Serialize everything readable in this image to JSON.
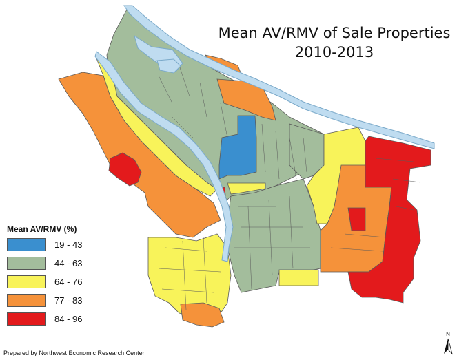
{
  "title": {
    "line1": "Mean AV/RMV of Sale Properties",
    "line2": "2010-2013"
  },
  "legend": {
    "title": "Mean AV/RMV (%)",
    "items": [
      {
        "label": "19 - 43",
        "color": "#3a8fcf"
      },
      {
        "label": "44 - 63",
        "color": "#a3bd9c"
      },
      {
        "label": "64 - 76",
        "color": "#f8f35a"
      },
      {
        "label": "77 - 83",
        "color": "#f5923a"
      },
      {
        "label": "84 - 96",
        "color": "#e31a1c"
      }
    ]
  },
  "credit": "Prepared by Northwest Economic Research Center",
  "north_arrow_label": "N",
  "colors": {
    "river": "#bfdcf0",
    "river_outline": "#7aa9c9",
    "border": "#5a5a5a"
  }
}
